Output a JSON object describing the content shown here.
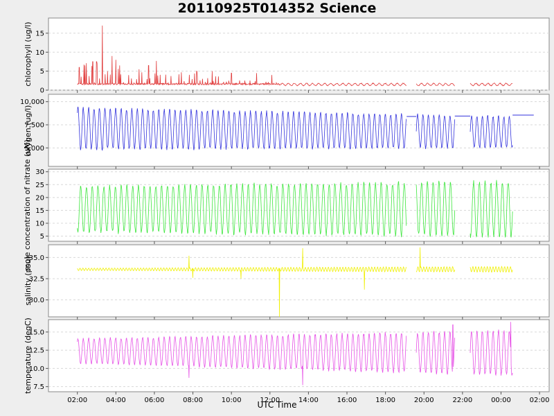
{
  "title": "20110925T014352 Science",
  "chart_data": {
    "type": "line",
    "title": "20110925T014352 Science",
    "xlabel": "UTC Time",
    "x_ticks": [
      "02:00",
      "04:00",
      "06:00",
      "08:00",
      "10:00",
      "12:00",
      "14:00",
      "16:00",
      "18:00",
      "20:00",
      "22:00",
      "00:00",
      "02:00"
    ],
    "x_range_hours": [
      0.5,
      26.5
    ],
    "grid": true,
    "panels": [
      {
        "name": "chlorophyll",
        "ylabel": "chlorophyll (ug/l)",
        "color": "#e03c3c",
        "ylim": [
          0,
          19
        ],
        "yticks": [
          0,
          5,
          10,
          15
        ],
        "ytick_labels": [
          "0",
          "5",
          "10",
          "15"
        ],
        "segments": [
          [
            2.0,
            19.1
          ],
          [
            19.6,
            21.6
          ],
          [
            22.4,
            24.6
          ]
        ],
        "baseline": 1.4,
        "peaks": [
          [
            3.3,
            17
          ],
          [
            2.1,
            6
          ],
          [
            2.4,
            6.5
          ],
          [
            2.8,
            7.5
          ],
          [
            3.0,
            7.5
          ],
          [
            3.8,
            9
          ],
          [
            4.0,
            8
          ],
          [
            4.2,
            6.5
          ],
          [
            5.2,
            5.5
          ],
          [
            5.7,
            6.5
          ],
          [
            6.1,
            7.7
          ],
          [
            8.2,
            5
          ],
          [
            9.0,
            5
          ],
          [
            10.0,
            4.5
          ],
          [
            11.3,
            4.5
          ],
          [
            12.1,
            4
          ]
        ],
        "decay_end_hour": 12.5,
        "spike_amp_start": 5
      },
      {
        "name": "oxygen",
        "ylabel": "oxygen (ug/l)",
        "color": "#3232dc",
        "ylim": [
          3000,
          10800
        ],
        "yticks": [
          5000,
          7500,
          10000
        ],
        "ytick_labels": [
          "5,000",
          "7,500",
          "10,000"
        ],
        "segments": [
          [
            2.0,
            19.1
          ],
          [
            19.6,
            21.6
          ],
          [
            22.4,
            24.6
          ]
        ],
        "wave": {
          "period_hours": 0.28,
          "mid": 7100,
          "amp_start": 2400,
          "amp_end": 1800,
          "trend": -400
        },
        "flat_lines": [
          [
            19.1,
            19.6,
            8400
          ],
          [
            21.6,
            22.4,
            8450
          ],
          [
            24.6,
            25.7,
            8550
          ]
        ]
      },
      {
        "name": "nitrate",
        "ylabel": "mole concentration of nitrate (uM)",
        "color": "#3ce63c",
        "ylim": [
          3,
          31
        ],
        "yticks": [
          5,
          10,
          15,
          20,
          25,
          30
        ],
        "ytick_labels": [
          "5",
          "10",
          "15",
          "20",
          "25",
          "30"
        ],
        "segments": [
          [
            2.0,
            19.1
          ],
          [
            19.6,
            21.6
          ],
          [
            22.4,
            24.6
          ]
        ],
        "wave": {
          "period_hours": 0.3,
          "mid": 15.5,
          "amp_start": 9.5,
          "amp_end": 11.5,
          "trend": 0
        }
      },
      {
        "name": "salinity",
        "ylabel": "salinity (psu)",
        "color": "#f0f000",
        "ylim": [
          28,
          36.5
        ],
        "yticks": [
          30.0,
          32.5,
          35.0
        ],
        "ytick_labels": [
          "30.0",
          "32.5",
          "35.0"
        ],
        "segments": [
          [
            2.0,
            19.1
          ],
          [
            19.6,
            21.6
          ],
          [
            22.4,
            24.6
          ]
        ],
        "wave": {
          "period_hours": 0.15,
          "mid": 33.6,
          "amp_start": 0.15,
          "amp_end": 0.35,
          "trend": 0
        },
        "spikes": [
          [
            7.8,
            35.2
          ],
          [
            8.0,
            32.6
          ],
          [
            10.5,
            32.5
          ],
          [
            12.5,
            28.0
          ],
          [
            13.7,
            36.1
          ],
          [
            16.9,
            31.2
          ],
          [
            19.8,
            36.2
          ]
        ]
      },
      {
        "name": "temperature",
        "ylabel": "temperature (degC)",
        "color": "#e650e6",
        "ylim": [
          6.8,
          16.7
        ],
        "yticks": [
          7.5,
          10.0,
          12.5,
          15.0
        ],
        "ytick_labels": [
          "7.5",
          "10.0",
          "12.5",
          "15.0"
        ],
        "segments": [
          [
            2.0,
            19.1
          ],
          [
            19.6,
            21.6
          ],
          [
            22.4,
            24.6
          ]
        ],
        "wave": {
          "period_hours": 0.28,
          "mid": 12.4,
          "amp_start": 1.8,
          "amp_end": 3.3,
          "trend": -0.3
        },
        "spikes": [
          [
            7.8,
            8.7
          ],
          [
            13.7,
            7.7
          ],
          [
            24.5,
            16.4
          ],
          [
            21.5,
            16.0
          ]
        ]
      }
    ]
  }
}
